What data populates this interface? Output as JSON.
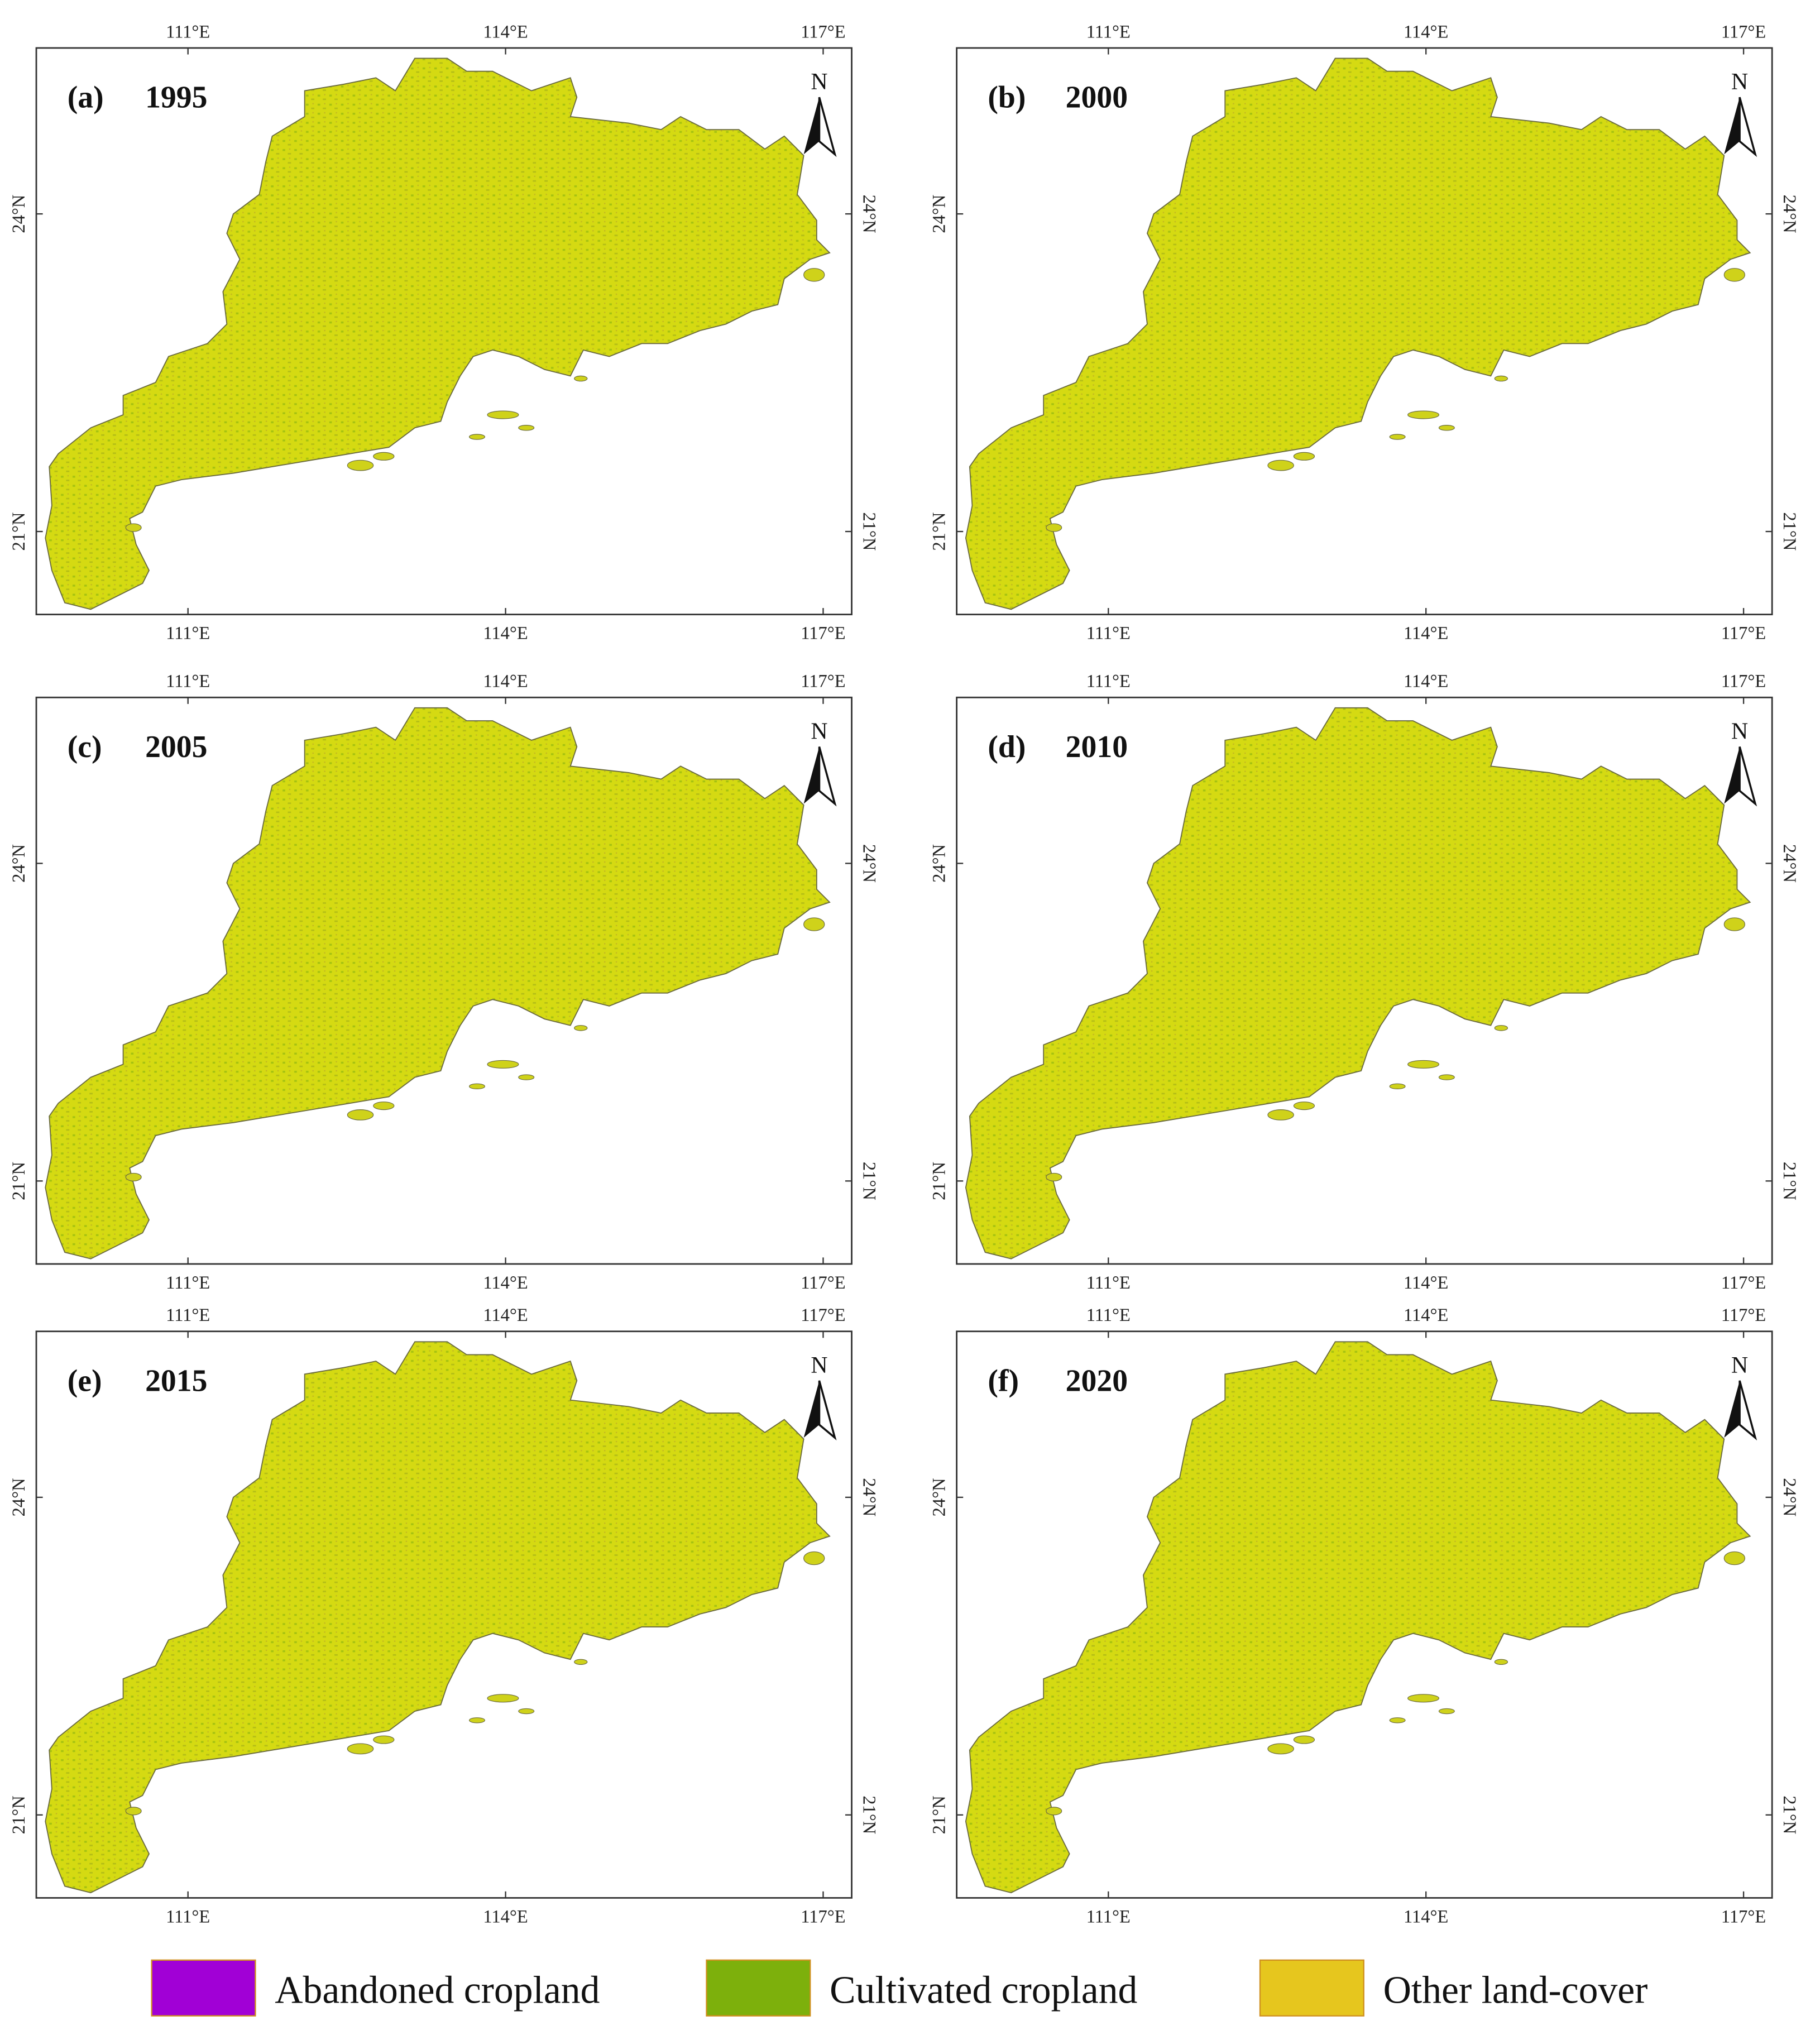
{
  "panels": [
    {
      "label": "(a)",
      "year": "1995"
    },
    {
      "label": "(b)",
      "year": "2000"
    },
    {
      "label": "(c)",
      "year": "2005"
    },
    {
      "label": "(d)",
      "year": "2010"
    },
    {
      "label": "(e)",
      "year": "2015"
    },
    {
      "label": "(f)",
      "year": "2020"
    }
  ],
  "north": "N",
  "xticks": [
    {
      "value": 111,
      "label": "111°E"
    },
    {
      "value": 114,
      "label": "114°E"
    },
    {
      "value": 117,
      "label": "117°E"
    }
  ],
  "yticks": [
    {
      "value": 24,
      "label": "24°N"
    },
    {
      "value": 21,
      "label": "21°N"
    }
  ],
  "legend": [
    {
      "name": "Abandoned cropland",
      "color": "#a100d6"
    },
    {
      "name": "Cultivated cropland",
      "color": "#7db00c"
    },
    {
      "name": "Other land-cover",
      "color": "#e6c61e"
    }
  ]
}
